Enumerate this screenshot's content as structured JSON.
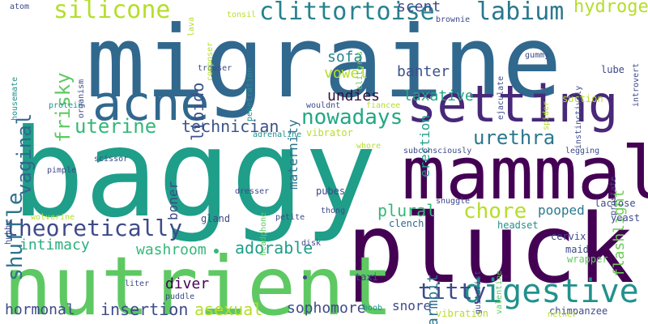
{
  "palette": {
    "purple_dark": "#440154",
    "purple": "#482878",
    "indigo": "#3e4a89",
    "blue": "#31688e",
    "teal_blue": "#26828e",
    "teal": "#1f9e89",
    "green": "#35b779",
    "light_green": "#6ece58",
    "lime": "#b5de2b",
    "yellow": "#fde725"
  },
  "words": [
    {
      "text": "baggy",
      "color": "#1f9e89"
    },
    {
      "text": "migraine",
      "color": "#31688e"
    },
    {
      "text": "pluck",
      "color": "#440154"
    },
    {
      "text": "nutrient",
      "color": "#5ec962"
    },
    {
      "text": "mammal",
      "color": "#440154"
    },
    {
      "text": "setting",
      "color": "#482878"
    },
    {
      "text": "acne",
      "color": "#31688e"
    },
    {
      "text": "digestive",
      "color": "#21918c"
    },
    {
      "text": "silicone",
      "color": "#b5de2b"
    },
    {
      "text": "clittortoise",
      "color": "#26828e"
    },
    {
      "text": "labium",
      "color": "#2a788e"
    },
    {
      "text": "theoretically",
      "color": "#3e4a89"
    },
    {
      "text": "shuffle",
      "color": "#2c728e"
    },
    {
      "text": "vaginal",
      "color": "#31688e"
    },
    {
      "text": "frisky",
      "color": "#5ec962"
    },
    {
      "text": "uterine",
      "color": "#35b779"
    },
    {
      "text": "nowadays",
      "color": "#22a884"
    },
    {
      "text": "urethra",
      "color": "#2a788e"
    },
    {
      "text": "chore",
      "color": "#b5de2b"
    },
    {
      "text": "plural",
      "color": "#35b779"
    },
    {
      "text": "hydrogen",
      "color": "#b5de2b"
    },
    {
      "text": "titty",
      "color": "#3e4a89"
    },
    {
      "text": "flashlight",
      "color": "#6ece58"
    },
    {
      "text": "technician",
      "color": "#3b528b"
    },
    {
      "text": "insertion",
      "color": "#3e4a89"
    },
    {
      "text": "sophomore",
      "color": "#3e4a89"
    },
    {
      "text": "hormonal",
      "color": "#3e4a89"
    },
    {
      "text": "asexual",
      "color": "#b5de2b"
    },
    {
      "text": "adorable",
      "color": "#1f9e89"
    },
    {
      "text": "intimacy",
      "color": "#2ab07f"
    },
    {
      "text": "washroom",
      "color": "#35b779"
    },
    {
      "text": "pooped",
      "color": "#2a788e"
    },
    {
      "text": "armpit",
      "color": "#2c728e"
    },
    {
      "text": "laxative",
      "color": "#22a884"
    },
    {
      "text": "banter",
      "color": "#3b528b"
    },
    {
      "text": "undies",
      "color": "#30123b"
    },
    {
      "text": "libido",
      "color": "#3b528b"
    },
    {
      "text": "erection",
      "color": "#1f9e89"
    },
    {
      "text": "scent",
      "color": "#3e4a89"
    },
    {
      "text": "maternity",
      "color": "#2c728e"
    },
    {
      "text": "sofa",
      "color": "#26828e"
    },
    {
      "text": "vowel",
      "color": "#b5de2b"
    },
    {
      "text": "boner",
      "color": "#3e4a89"
    },
    {
      "text": "diver",
      "color": "#440154"
    },
    {
      "text": "snore",
      "color": "#3e4a89"
    },
    {
      "text": "clench",
      "color": "#31688e"
    },
    {
      "text": "headset",
      "color": "#21918c"
    },
    {
      "text": "cervix",
      "color": "#3e4a89"
    },
    {
      "text": "lactose",
      "color": "#3e4a89"
    },
    {
      "text": "yeast",
      "color": "#3e4a89"
    },
    {
      "text": "maid",
      "color": "#3e4a89"
    },
    {
      "text": "wrapper",
      "color": "#5ec962"
    },
    {
      "text": "chimpanzee",
      "color": "#3e4a89"
    },
    {
      "text": "vibration",
      "color": "#b5de2b"
    },
    {
      "text": "nether",
      "color": "#b5de2b"
    },
    {
      "text": "boob",
      "color": "#21918c"
    },
    {
      "text": "taxi",
      "color": "#3e4a89"
    },
    {
      "text": "guitarist",
      "color": "#3e4a89"
    },
    {
      "text": "valentine",
      "color": "#5ec962"
    },
    {
      "text": "ejaculate",
      "color": "#3e4a89"
    },
    {
      "text": "instinctively",
      "color": "#3e4a89"
    },
    {
      "text": "introvert",
      "color": "#3e4a89"
    },
    {
      "text": "gummy",
      "color": "#3e4a89"
    },
    {
      "text": "lube",
      "color": "#3e4a89"
    },
    {
      "text": "suction",
      "color": "#b5de2b"
    },
    {
      "text": "spider",
      "color": "#b5de2b"
    },
    {
      "text": "prostate",
      "color": "#3e4a89"
    },
    {
      "text": "legging",
      "color": "#3e4a89"
    },
    {
      "text": "snuggle",
      "color": "#3e4a89"
    },
    {
      "text": "subconsciously",
      "color": "#3e4a89"
    },
    {
      "text": "whore",
      "color": "#b5de2b"
    },
    {
      "text": "vibrator",
      "color": "#b5de2b"
    },
    {
      "text": "adrenaline",
      "color": "#21918c"
    },
    {
      "text": "wouldnt",
      "color": "#3e4a89"
    },
    {
      "text": "fiancee",
      "color": "#b5de2b"
    },
    {
      "text": "clitoris",
      "color": "#5ec962"
    },
    {
      "text": "penetration",
      "color": "#21918c"
    },
    {
      "text": "trouser",
      "color": "#3e4a89"
    },
    {
      "text": "tonsil",
      "color": "#b5de2b"
    },
    {
      "text": "lava",
      "color": "#b5de2b"
    },
    {
      "text": "composer",
      "color": "#b5de2b"
    },
    {
      "text": "brownie",
      "color": "#3e4a89"
    },
    {
      "text": "atom",
      "color": "#3e4a89"
    },
    {
      "text": "housemate",
      "color": "#21918c"
    },
    {
      "text": "organism",
      "color": "#3e4a89"
    },
    {
      "text": "protein",
      "color": "#21918c"
    },
    {
      "text": "pimple",
      "color": "#3e4a89"
    },
    {
      "text": "scissor",
      "color": "#3e4a89"
    },
    {
      "text": "hubby",
      "color": "#3e4a89"
    },
    {
      "text": "wolverine",
      "color": "#b5de2b"
    },
    {
      "text": "dresser",
      "color": "#3e4a89"
    },
    {
      "text": "headphone",
      "color": "#5ec962"
    },
    {
      "text": "gland",
      "color": "#3e4a89"
    },
    {
      "text": "petite",
      "color": "#3e4a89"
    },
    {
      "text": "pubes",
      "color": "#3e4a89"
    },
    {
      "text": "thong",
      "color": "#3e4a89"
    },
    {
      "text": "disk",
      "color": "#3e4a89"
    },
    {
      "text": "liter",
      "color": "#3e4a89"
    },
    {
      "text": "puddle",
      "color": "#3e4a89"
    }
  ]
}
